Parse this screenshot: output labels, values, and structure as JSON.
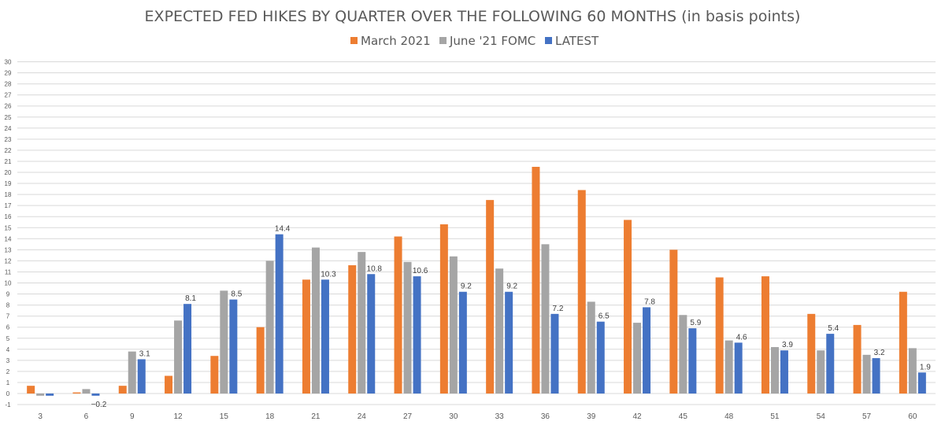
{
  "chart_data": {
    "type": "bar",
    "title": "EXPECTED FED HIKES BY QUARTER OVER THE FOLLOWING 60 MONTHS (in basis points)",
    "xlabel": "",
    "ylabel": "",
    "ylim": [
      -1,
      30
    ],
    "yticks": [
      -1,
      0,
      1,
      2,
      3,
      4,
      5,
      6,
      7,
      8,
      9,
      10,
      11,
      12,
      13,
      14,
      15,
      16,
      17,
      18,
      19,
      20,
      21,
      22,
      23,
      24,
      25,
      26,
      27,
      28,
      29,
      30
    ],
    "grid": true,
    "legend_position": "top",
    "categories": [
      "3",
      "6",
      "9",
      "12",
      "15",
      "18",
      "21",
      "24",
      "27",
      "30",
      "33",
      "36",
      "39",
      "42",
      "45",
      "48",
      "51",
      "54",
      "57",
      "60"
    ],
    "series": [
      {
        "name": "March 2021",
        "color": "#ed7d31",
        "values": [
          0.7,
          0.1,
          0.7,
          1.6,
          3.4,
          6.0,
          10.3,
          11.6,
          14.2,
          15.3,
          17.5,
          20.5,
          18.4,
          15.7,
          13.0,
          10.5,
          10.6,
          7.2,
          6.2,
          9.2
        ]
      },
      {
        "name": "June '21 FOMC",
        "color": "#a5a5a5",
        "values": [
          -0.2,
          0.4,
          3.8,
          6.6,
          9.3,
          12.0,
          13.2,
          12.8,
          11.9,
          12.4,
          11.3,
          13.5,
          8.3,
          6.4,
          7.1,
          4.8,
          4.2,
          3.9,
          3.5,
          4.1
        ]
      },
      {
        "name": "LATEST",
        "color": "#4472c4",
        "values": [
          -0.2,
          -0.2,
          3.1,
          8.1,
          8.5,
          14.4,
          10.3,
          10.8,
          10.6,
          9.2,
          9.2,
          7.2,
          6.5,
          7.8,
          5.9,
          4.6,
          3.9,
          5.4,
          3.2,
          1.9
        ]
      }
    ],
    "data_labels": {
      "series": "LATEST",
      "labels": [
        "",
        "−0.2",
        "3.1",
        "8.1",
        "8.5",
        "14.4",
        "10.3",
        "10.8",
        "10.6",
        "9.2",
        "9.2",
        "7.2",
        "6.5",
        "7.8",
        "5.9",
        "4.6",
        "3.9",
        "5.4",
        "3.2",
        "1.9"
      ]
    }
  }
}
